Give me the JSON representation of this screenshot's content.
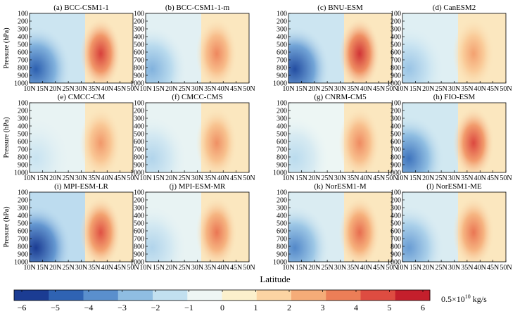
{
  "chart_data": {
    "type": "heatmap",
    "xlabel": "Latitude",
    "ylabel": "Pressure (hPa)",
    "x_ticks": [
      "10N",
      "15N",
      "20N",
      "25N",
      "30N",
      "35N",
      "40N",
      "45N",
      "50N"
    ],
    "x_range": [
      10,
      50
    ],
    "y_ticks": [
      "100",
      "200",
      "300",
      "400",
      "500",
      "600",
      "700",
      "800",
      "900",
      "1000"
    ],
    "y_range": [
      100,
      1000
    ],
    "colorbar": {
      "label_prefix": "0.5×10",
      "label_exponent": "10",
      "label_suffix": " kg/s",
      "ticks": [
        "−6",
        "−5",
        "−4",
        "−3",
        "−2",
        "−1",
        "0",
        "1",
        "2",
        "3",
        "4",
        "5",
        "6"
      ],
      "range": [
        -6,
        6
      ],
      "colors": [
        "#1b3c93",
        "#2f63b3",
        "#5a8fcd",
        "#8fbde2",
        "#c2e0f0",
        "#eef6f4",
        "#fbf0cc",
        "#fbd4a3",
        "#f5ac78",
        "#ec7e57",
        "#de4c41",
        "#c41f2c"
      ]
    },
    "panels": [
      {
        "title": "(a) BCC-CSM1-1",
        "neg_min": -5.0,
        "pos_max": 5.2,
        "neg_bg": -2.0
      },
      {
        "title": "(b) BCC-CSM1-1-m",
        "neg_min": -3.0,
        "pos_max": 3.6,
        "neg_bg": -1.2
      },
      {
        "title": "(c) BNU-ESM",
        "neg_min": -5.5,
        "pos_max": 5.5,
        "neg_bg": -2.0
      },
      {
        "title": "(d) CanESM2",
        "neg_min": -2.5,
        "pos_max": 3.0,
        "neg_bg": -1.3
      },
      {
        "title": "(e) CMCC-CM",
        "neg_min": -1.5,
        "pos_max": 3.2,
        "neg_bg": -1.0
      },
      {
        "title": "(f) CMCC-CMS",
        "neg_min": -2.0,
        "pos_max": 3.4,
        "neg_bg": -1.0
      },
      {
        "title": "(g) CNRM-CM5",
        "neg_min": -1.8,
        "pos_max": 3.5,
        "neg_bg": -0.8
      },
      {
        "title": "(h) FIO-ESM",
        "neg_min": -4.5,
        "pos_max": 5.0,
        "neg_bg": -1.8
      },
      {
        "title": "(i) MPI-ESM-LR",
        "neg_min": -6.0,
        "pos_max": 4.8,
        "neg_bg": -2.5
      },
      {
        "title": "(j) MPI-ESM-MR",
        "neg_min": -2.0,
        "pos_max": 4.0,
        "neg_bg": -1.0
      },
      {
        "title": "(k) NorESM1-M",
        "neg_min": -4.0,
        "pos_max": 4.2,
        "neg_bg": -1.5
      },
      {
        "title": "(l) NorESM1-ME",
        "neg_min": -3.5,
        "pos_max": 4.0,
        "neg_bg": -1.5
      }
    ]
  }
}
